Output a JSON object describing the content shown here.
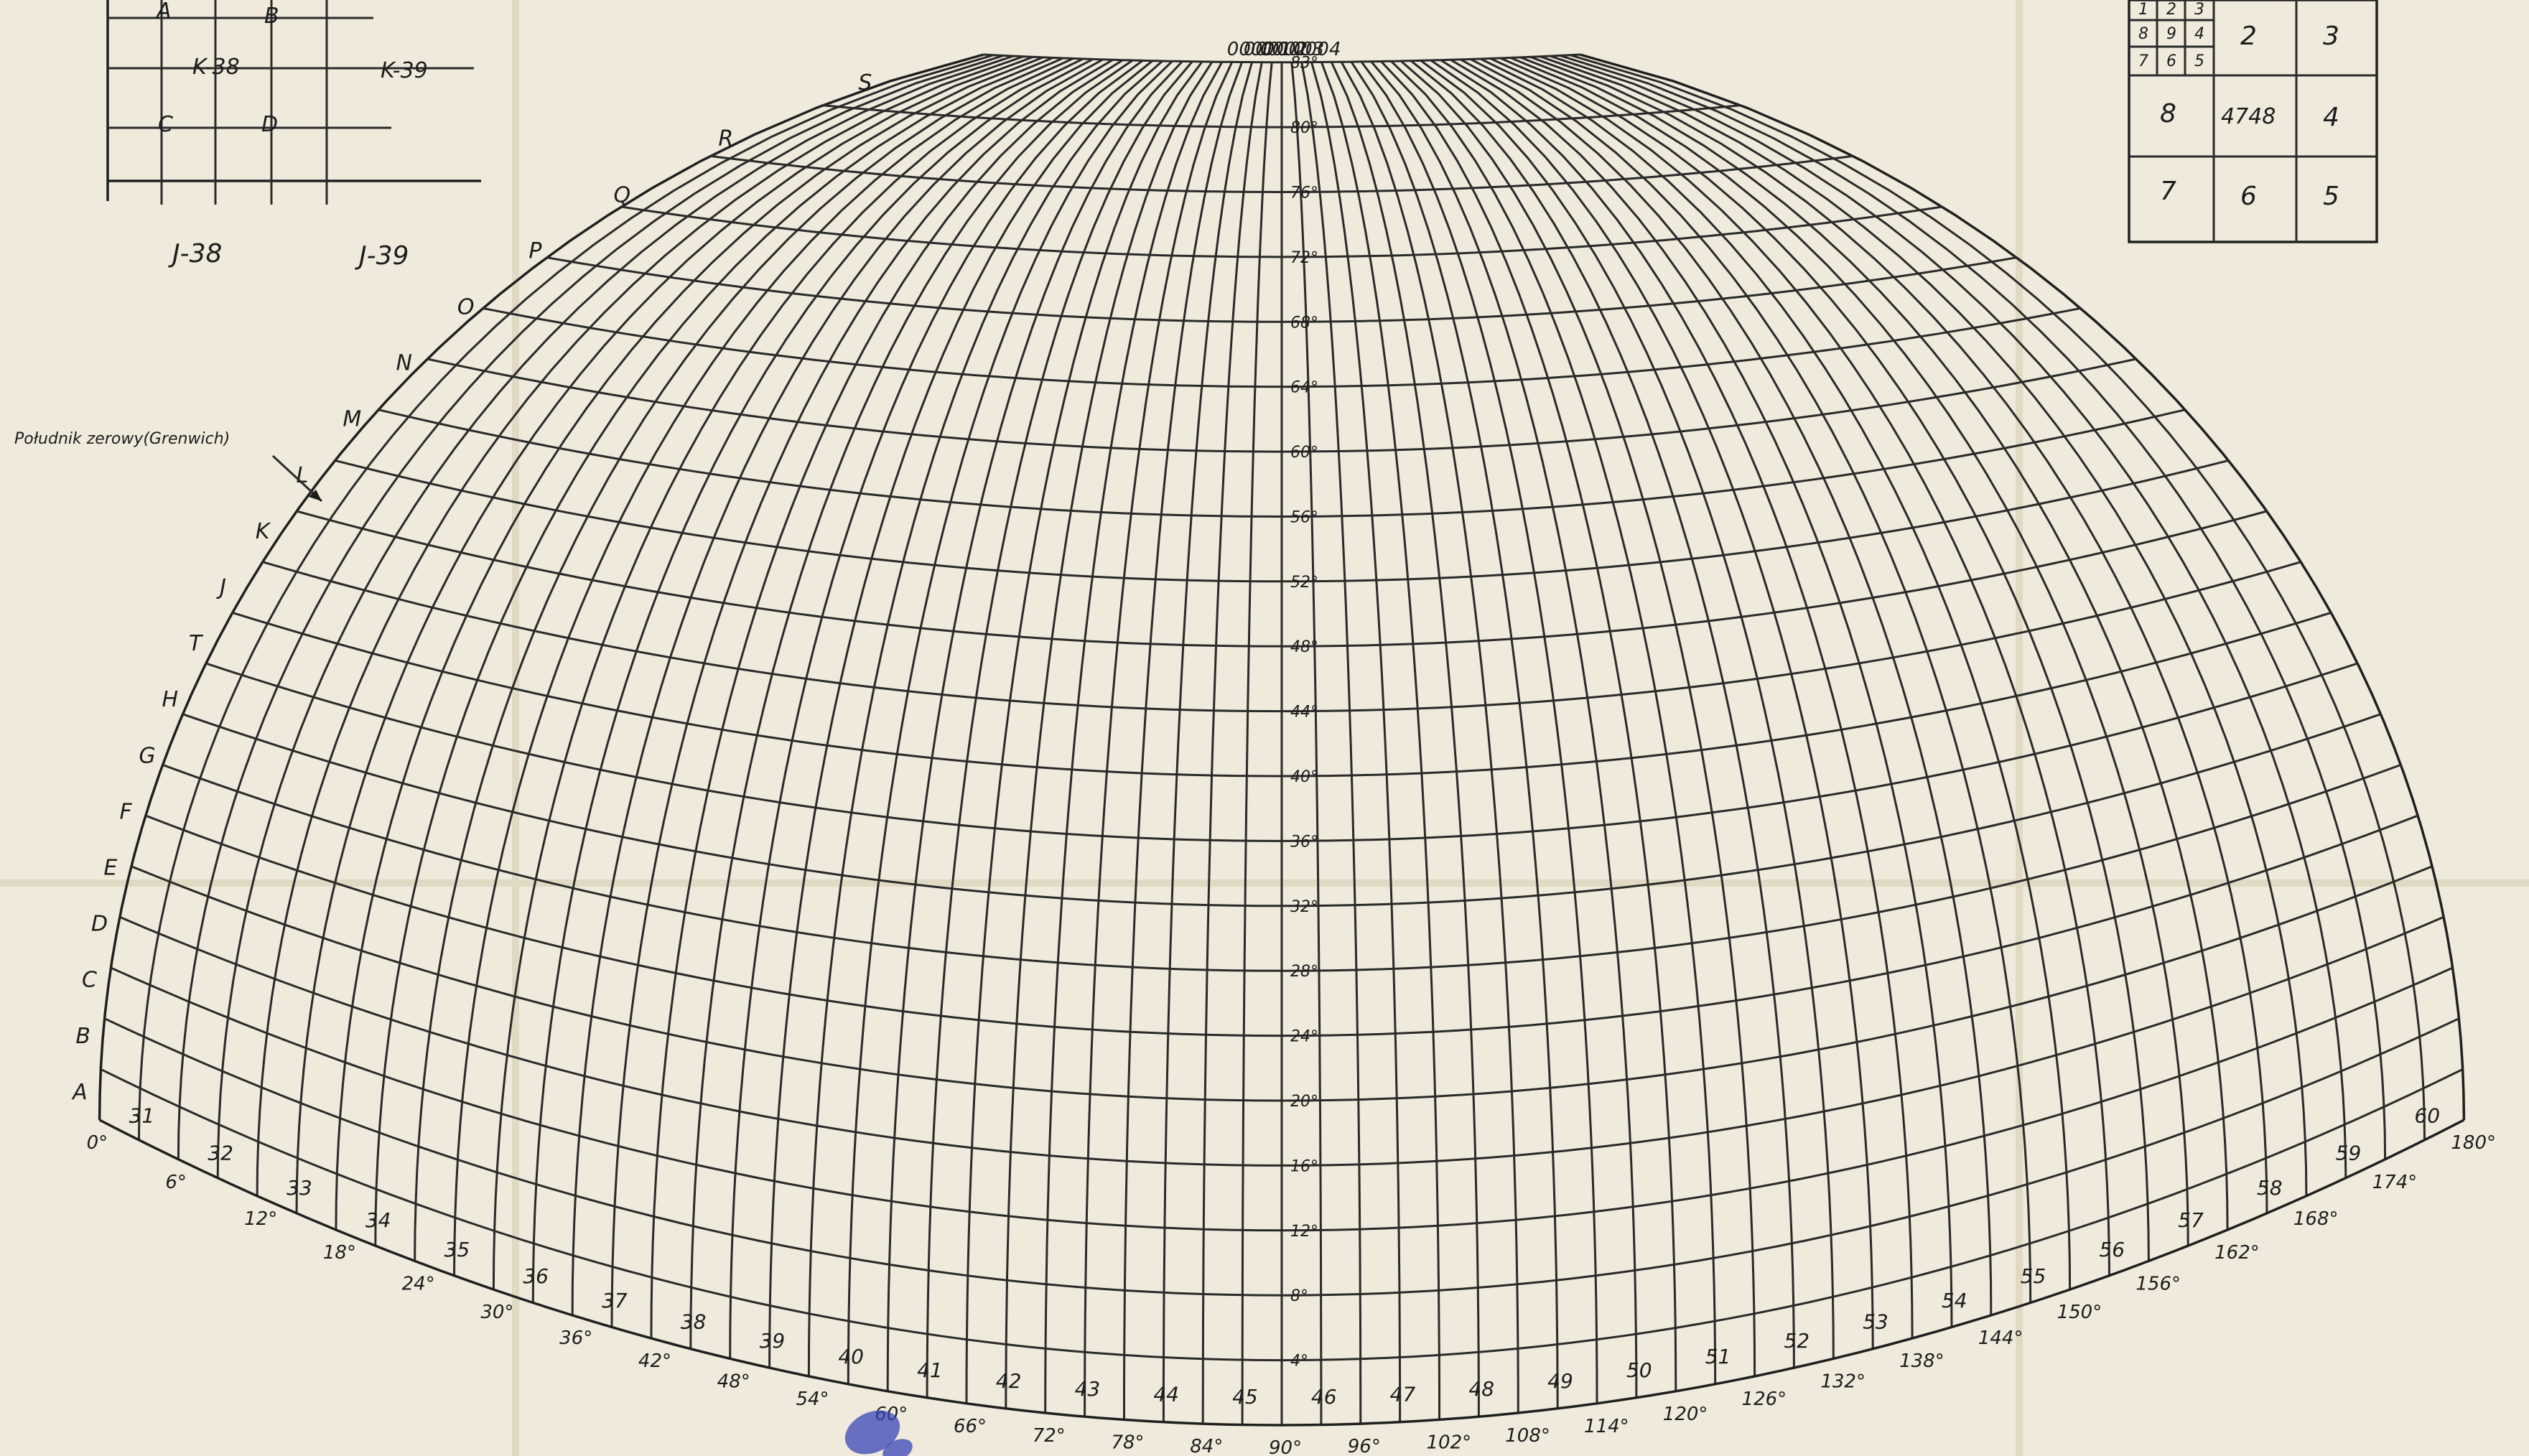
{
  "map": {
    "meridian_note": "Południk zerowy(Grenwich)",
    "parallels": [
      "4°",
      "8°",
      "12°",
      "16°",
      "20°",
      "24°",
      "28°",
      "32°",
      "36°",
      "40°",
      "44°",
      "48°",
      "52°",
      "56°",
      "60°",
      "64°",
      "68°",
      "72°",
      "76°",
      "80°",
      "83°"
    ],
    "meridians": [
      "0°",
      "6°",
      "12°",
      "18°",
      "24°",
      "30°",
      "36°",
      "42°",
      "48°",
      "54°",
      "60°",
      "66°",
      "72°",
      "78°",
      "84°",
      "90°",
      "96°",
      "102°",
      "108°",
      "114°",
      "120°",
      "126°",
      "132°",
      "138°",
      "144°",
      "150°",
      "156°",
      "162°",
      "168°",
      "174°",
      "180°"
    ],
    "zone_numbers": [
      "31",
      "32",
      "33",
      "34",
      "35",
      "36",
      "37",
      "38",
      "39",
      "40",
      "41",
      "42",
      "43",
      "44",
      "45",
      "46",
      "47",
      "48",
      "49",
      "50",
      "51",
      "52",
      "53",
      "54",
      "55",
      "56",
      "57",
      "58",
      "59",
      "60"
    ],
    "row_letters": [
      "A",
      "B",
      "C",
      "D",
      "E",
      "F",
      "G",
      "H",
      "T",
      "J",
      "K",
      "L",
      "M",
      "N",
      "O",
      "P",
      "Q",
      "R",
      "S"
    ],
    "top_labels": [
      "0000",
      "0001",
      "0002",
      "0003",
      "0004"
    ]
  },
  "index_sheet": {
    "top_letters": [
      "A",
      "B"
    ],
    "middle_labels": [
      "K-38",
      "K-39"
    ],
    "bottom_letters": [
      "C",
      "D"
    ],
    "footer_labels": [
      "J-38",
      "J-39"
    ]
  },
  "division_box": {
    "small_cells": [
      "1",
      "2",
      "3",
      "8",
      "9",
      "4",
      "7",
      "6",
      "5"
    ],
    "cells": [
      "2",
      "3",
      "8",
      "4748",
      "4",
      "7",
      "6",
      "5"
    ]
  },
  "colors": {
    "paper": "#efeadb",
    "ink": "#2a2a2a",
    "stamp": "#3a45b8"
  }
}
